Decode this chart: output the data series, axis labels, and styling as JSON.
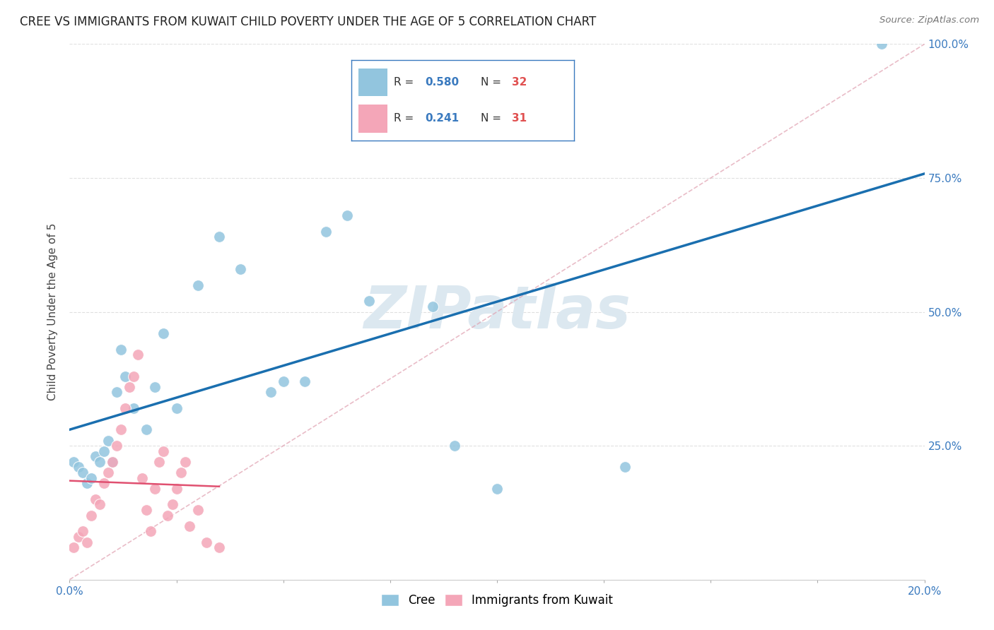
{
  "title": "CREE VS IMMIGRANTS FROM KUWAIT CHILD POVERTY UNDER THE AGE OF 5 CORRELATION CHART",
  "source": "Source: ZipAtlas.com",
  "ylabel": "Child Poverty Under the Age of 5",
  "xlim": [
    0.0,
    0.2
  ],
  "ylim": [
    0.0,
    1.0
  ],
  "xtick_positions": [
    0.0,
    0.025,
    0.05,
    0.075,
    0.1,
    0.125,
    0.15,
    0.175,
    0.2
  ],
  "xtick_labels": [
    "0.0%",
    "",
    "",
    "",
    "",
    "",
    "",
    "",
    "20.0%"
  ],
  "ytick_positions": [
    0.0,
    0.25,
    0.5,
    0.75,
    1.0
  ],
  "ytick_labels": [
    "",
    "25.0%",
    "50.0%",
    "75.0%",
    "100.0%"
  ],
  "cree_color": "#92c5de",
  "kuwait_color": "#f4a6b8",
  "trend_cree_color": "#1a6faf",
  "trend_kuwait_color": "#e05070",
  "cree_R": "0.580",
  "cree_N": "32",
  "kuwait_R": "0.241",
  "kuwait_N": "31",
  "cree_x": [
    0.001,
    0.002,
    0.003,
    0.004,
    0.005,
    0.006,
    0.007,
    0.008,
    0.009,
    0.01,
    0.011,
    0.012,
    0.013,
    0.015,
    0.018,
    0.02,
    0.022,
    0.025,
    0.03,
    0.035,
    0.04,
    0.047,
    0.05,
    0.055,
    0.06,
    0.065,
    0.07,
    0.085,
    0.09,
    0.1,
    0.13,
    0.19
  ],
  "cree_y": [
    0.22,
    0.21,
    0.2,
    0.18,
    0.19,
    0.23,
    0.22,
    0.24,
    0.26,
    0.22,
    0.35,
    0.43,
    0.38,
    0.32,
    0.28,
    0.36,
    0.46,
    0.32,
    0.55,
    0.64,
    0.58,
    0.35,
    0.37,
    0.37,
    0.65,
    0.68,
    0.52,
    0.51,
    0.25,
    0.17,
    0.21,
    1.0
  ],
  "kuwait_x": [
    0.001,
    0.002,
    0.003,
    0.004,
    0.005,
    0.006,
    0.007,
    0.008,
    0.009,
    0.01,
    0.011,
    0.012,
    0.013,
    0.014,
    0.015,
    0.016,
    0.017,
    0.018,
    0.019,
    0.02,
    0.021,
    0.022,
    0.023,
    0.024,
    0.025,
    0.026,
    0.027,
    0.028,
    0.03,
    0.032,
    0.035
  ],
  "kuwait_y": [
    0.06,
    0.08,
    0.09,
    0.07,
    0.12,
    0.15,
    0.14,
    0.18,
    0.2,
    0.22,
    0.25,
    0.28,
    0.32,
    0.36,
    0.38,
    0.42,
    0.19,
    0.13,
    0.09,
    0.17,
    0.22,
    0.24,
    0.12,
    0.14,
    0.17,
    0.2,
    0.22,
    0.1,
    0.13,
    0.07,
    0.06
  ],
  "watermark": "ZIPatlas",
  "background_color": "#ffffff",
  "grid_color": "#e0e0e0"
}
